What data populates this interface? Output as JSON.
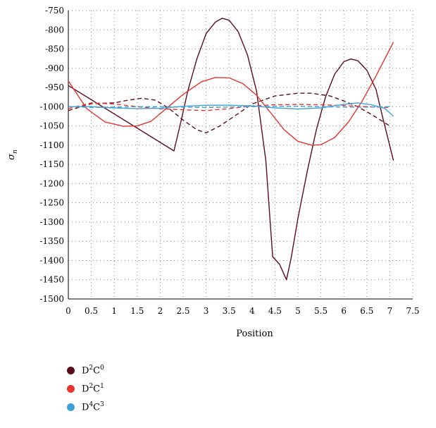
{
  "chart_data": {
    "type": "line",
    "title": "",
    "xlabel": "Position",
    "ylabel": "σn",
    "xlim": [
      0,
      7.5
    ],
    "ylim": [
      -1500,
      -750
    ],
    "xticks": [
      "0",
      "0.5",
      "1",
      "1.5",
      "2",
      "2.5",
      "3",
      "3.5",
      "4",
      "4.5",
      "5",
      "5.5",
      "6",
      "6.5",
      "7",
      "7.5"
    ],
    "yticks": [
      "-750",
      "-800",
      "-850",
      "-900",
      "-950",
      "-1000",
      "-1050",
      "-1100",
      "-1150",
      "-1200",
      "-1250",
      "-1300",
      "-1350",
      "-1400",
      "-1450",
      "-1500"
    ],
    "grid": "dotted",
    "legend_position": "bottom-left",
    "legend": [
      {
        "base": "D",
        "sup1": "2",
        "mid": "C",
        "sup2": "0",
        "color": "#5c0c1a"
      },
      {
        "base": "D",
        "sup1": "2",
        "mid": "C",
        "sup2": "1",
        "color": "#e8332f"
      },
      {
        "base": "D",
        "sup1": "4",
        "mid": "C",
        "sup2": "3",
        "color": "#3ea0d8"
      }
    ],
    "series": [
      {
        "legend_index": 0,
        "style": "solid",
        "color": "#5c0c1a",
        "x": [
          0,
          2.3,
          2.45,
          2.6,
          2.8,
          3.0,
          3.2,
          3.35,
          3.5,
          3.7,
          3.9,
          4.1,
          4.3,
          4.45,
          4.6,
          4.75,
          4.85,
          5.0,
          5.2,
          5.4,
          5.6,
          5.8,
          6.0,
          6.15,
          6.3,
          6.5,
          6.7,
          6.85,
          7.08
        ],
        "y": [
          -945,
          -1115,
          -1040,
          -960,
          -875,
          -810,
          -780,
          -770,
          -775,
          -805,
          -865,
          -960,
          -1140,
          -1390,
          -1410,
          -1450,
          -1395,
          -1290,
          -1170,
          -1060,
          -975,
          -915,
          -883,
          -876,
          -880,
          -905,
          -955,
          -1030,
          -1140
        ]
      },
      {
        "legend_index": 0,
        "style": "dashed",
        "color": "#5c0c1a",
        "x": [
          0,
          0.5,
          1.0,
          1.3,
          1.6,
          1.9,
          2.2,
          2.5,
          2.8,
          3.0,
          3.3,
          3.7,
          4.0,
          4.5,
          5.0,
          5.3,
          5.7,
          6.0,
          6.3,
          6.6,
          7.0
        ],
        "y": [
          -1010,
          -992,
          -990,
          -983,
          -978,
          -983,
          -1005,
          -1035,
          -1060,
          -1068,
          -1050,
          -1018,
          -993,
          -972,
          -965,
          -965,
          -972,
          -985,
          -1000,
          -1020,
          -1050
        ]
      },
      {
        "legend_index": 1,
        "style": "solid",
        "color": "#e8332f",
        "x": [
          0,
          0.4,
          0.8,
          1.2,
          1.5,
          1.8,
          2.1,
          2.5,
          2.9,
          3.2,
          3.5,
          3.8,
          4.1,
          4.4,
          4.7,
          5.0,
          5.3,
          5.5,
          5.8,
          6.1,
          6.4,
          6.7,
          7.08
        ],
        "y": [
          -933,
          -1005,
          -1040,
          -1051,
          -1050,
          -1038,
          -1008,
          -968,
          -935,
          -924,
          -925,
          -940,
          -970,
          -1015,
          -1060,
          -1090,
          -1100,
          -1099,
          -1080,
          -1040,
          -985,
          -920,
          -832
        ]
      },
      {
        "legend_index": 1,
        "style": "dashed",
        "color": "#e8332f",
        "x": [
          0,
          0.5,
          1.0,
          1.5,
          2.0,
          2.5,
          3.0,
          3.5,
          4.0,
          4.5,
          5.0,
          5.5,
          6.0,
          6.5,
          7.0
        ],
        "y": [
          -1005,
          -990,
          -993,
          -1000,
          -1005,
          -1008,
          -1010,
          -1005,
          -998,
          -995,
          -994,
          -995,
          -997,
          -1000,
          -1002
        ]
      },
      {
        "legend_index": 2,
        "style": "solid",
        "color": "#3ea0d8",
        "x": [
          0,
          0.5,
          1.0,
          1.5,
          2.0,
          2.5,
          3.0,
          3.5,
          4.0,
          4.5,
          5.0,
          5.5,
          6.0,
          6.3,
          6.6,
          6.9,
          7.08
        ],
        "y": [
          -1000,
          -1000,
          -1003,
          -1005,
          -1004,
          -999,
          -996,
          -996,
          -998,
          -1003,
          -1006,
          -1003,
          -994,
          -990,
          -995,
          -1005,
          -1025
        ]
      },
      {
        "legend_index": 2,
        "style": "dashed",
        "color": "#3ea0d8",
        "x": [
          0,
          0.5,
          1.0,
          1.5,
          2.0,
          2.5,
          3.0,
          3.5,
          4.0,
          4.5,
          5.0,
          5.5,
          6.0,
          6.5,
          7.0
        ],
        "y": [
          -1000,
          -1002,
          -1001,
          -1000,
          -1000,
          -1001,
          -1002,
          -1001,
          -1000,
          -999,
          -999,
          -1000,
          -1001,
          -1001,
          -1000
        ]
      }
    ]
  }
}
